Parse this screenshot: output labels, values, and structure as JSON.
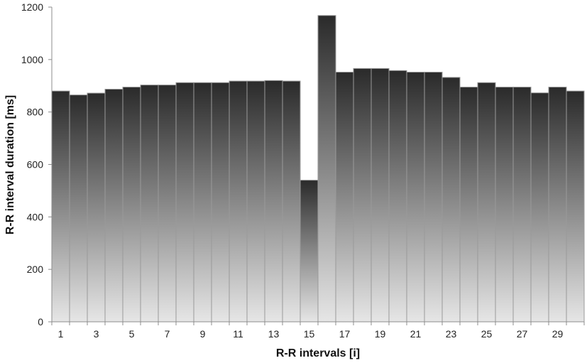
{
  "chart_data": {
    "type": "bar",
    "title": "",
    "xlabel": "R-R intervals [i]",
    "ylabel": "R-R interval duration [ms]",
    "ylim": [
      0,
      1200
    ],
    "yticks": [
      0,
      200,
      400,
      600,
      800,
      1000,
      1200
    ],
    "categories": [
      1,
      2,
      3,
      4,
      5,
      6,
      7,
      8,
      9,
      10,
      11,
      12,
      13,
      14,
      15,
      16,
      17,
      18,
      19,
      20,
      21,
      22,
      23,
      24,
      25,
      26,
      27,
      28,
      29,
      30
    ],
    "xtick_labels": [
      "1",
      "3",
      "5",
      "7",
      "9",
      "11",
      "13",
      "15",
      "17",
      "19",
      "21",
      "23",
      "25",
      "27",
      "29"
    ],
    "values": [
      880,
      865,
      872,
      887,
      895,
      903,
      903,
      912,
      912,
      912,
      918,
      918,
      920,
      918,
      540,
      1168,
      952,
      966,
      966,
      958,
      952,
      952,
      932,
      895,
      912,
      895,
      895,
      873,
      895,
      880
    ],
    "grid": false,
    "gradient": {
      "top": "#2a2a2a",
      "bottom": "#e6e6e6"
    },
    "bar_edge_color": "#9a9a9a",
    "axis_color": "#8c8c8c"
  }
}
